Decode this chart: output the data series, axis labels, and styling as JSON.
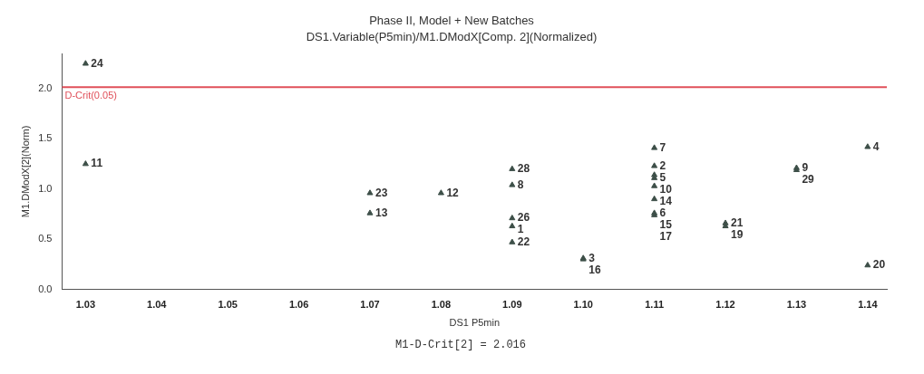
{
  "chart_data": {
    "type": "scatter",
    "title": "Phase II, Model + New Batches",
    "subtitle": "DS1.Variable(P5min)/M1.DModX[Comp. 2](Normalized)",
    "xlabel": "DS1 P5min",
    "ylabel": "M1.DModX[2](Norm)",
    "x": [
      1.03,
      1.03,
      1.07,
      1.07,
      1.08,
      1.09,
      1.09,
      1.09,
      1.09,
      1.09,
      1.1,
      1.1,
      1.11,
      1.11,
      1.11,
      1.11,
      1.11,
      1.11,
      1.11,
      1.11,
      1.12,
      1.12,
      1.13,
      1.13,
      1.14,
      1.14
    ],
    "series": [
      {
        "color": "#3d4f48",
        "values": [
          2.25,
          1.25,
          0.96,
          0.76,
          0.96,
          1.2,
          1.04,
          0.71,
          0.63,
          0.47,
          0.31,
          0.3,
          1.41,
          1.23,
          1.14,
          1.11,
          1.03,
          0.9,
          0.76,
          0.74,
          0.66,
          0.63,
          1.21,
          1.19,
          1.42,
          0.24
        ]
      }
    ],
    "marker": "triangle",
    "xlim": [
      1.0267,
      1.1427
    ],
    "ylim": [
      0,
      2.35
    ],
    "xticks": [
      1.03,
      1.04,
      1.05,
      1.06,
      1.07,
      1.08,
      1.09,
      {
        "value": 1.1,
        "label": "1.10"
      },
      1.11,
      1.12,
      1.13,
      1.14
    ],
    "yticks": [
      {
        "value": 0,
        "label": "0.0"
      },
      0.5,
      {
        "value": 1,
        "label": "1.0"
      },
      1.5,
      {
        "value": 2,
        "label": "2.0"
      }
    ],
    "ref_lines": [
      {
        "axis": "y",
        "value": 2.016,
        "label": "D-Crit(0.05)",
        "color": "#e0505a"
      }
    ],
    "annotations": [
      {
        "text": "24",
        "x": 1.03,
        "y": 2.25
      },
      {
        "text": "11",
        "x": 1.03,
        "y": 1.25
      },
      {
        "text": "23",
        "x": 1.07,
        "y": 0.96
      },
      {
        "text": "13",
        "x": 1.07,
        "y": 0.76
      },
      {
        "text": "12",
        "x": 1.08,
        "y": 0.96
      },
      {
        "text": "28",
        "x": 1.09,
        "y": 1.2
      },
      {
        "text": "8",
        "x": 1.09,
        "y": 1.04
      },
      {
        "text": "26",
        "x": 1.09,
        "y": 0.71
      },
      {
        "text": "1",
        "x": 1.09,
        "y": 0.63
      },
      {
        "text": "22",
        "x": 1.09,
        "y": 0.47
      },
      {
        "text": "3",
        "x": 1.1,
        "y": 0.31
      },
      {
        "text": "16",
        "x": 1.1,
        "y": 0.3
      },
      {
        "text": "7",
        "x": 1.11,
        "y": 1.41
      },
      {
        "text": "2",
        "x": 1.11,
        "y": 1.23
      },
      {
        "text": "5",
        "x": 1.11,
        "y": 1.14
      },
      {
        "text": "10",
        "x": 1.11,
        "y": 1.11
      },
      {
        "text": "14",
        "x": 1.11,
        "y": 1.03
      },
      {
        "text": "6",
        "x": 1.11,
        "y": 0.9
      },
      {
        "text": "15",
        "x": 1.11,
        "y": 0.76
      },
      {
        "text": "17",
        "x": 1.11,
        "y": 0.74
      },
      {
        "text": "21",
        "x": 1.12,
        "y": 0.66
      },
      {
        "text": "19",
        "x": 1.12,
        "y": 0.63
      },
      {
        "text": "9",
        "x": 1.13,
        "y": 1.21
      },
      {
        "text": "29",
        "x": 1.13,
        "y": 1.19
      },
      {
        "text": "4",
        "x": 1.14,
        "y": 1.42
      },
      {
        "text": "20",
        "x": 1.14,
        "y": 0.24
      },
      "M1-D-Crit[2] = 2.016"
    ]
  }
}
